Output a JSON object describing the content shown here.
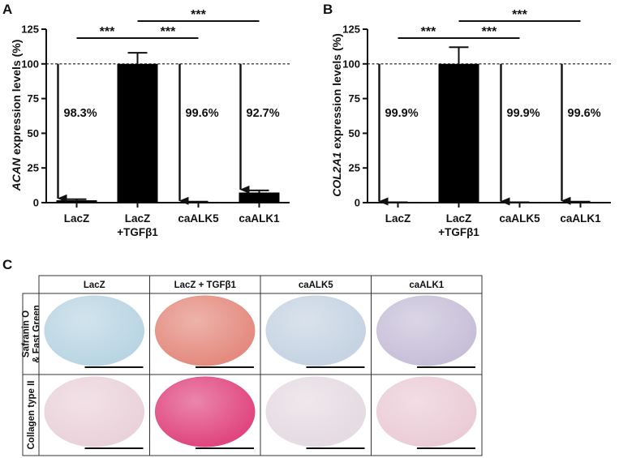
{
  "chart_data": [
    {
      "panel": "A",
      "type": "bar",
      "categories": [
        "LacZ",
        "LacZ +TGFβ1",
        "caALK5",
        "caALK1"
      ],
      "category_lines": [
        [
          "LacZ"
        ],
        [
          "LacZ",
          "+TGFβ1"
        ],
        [
          "caALK5"
        ],
        [
          "caALK1"
        ]
      ],
      "values": [
        1.7,
        100,
        0.4,
        7.3
      ],
      "errors": [
        0.8,
        8,
        0.3,
        1.5
      ],
      "ylabel_italic": "ACAN",
      "ylabel_rest": " expression levels (%)",
      "ylim": [
        0,
        125
      ],
      "yticks": [
        0,
        25,
        50,
        75,
        100,
        125
      ],
      "reference_line": 100,
      "reduction_labels": [
        "98.3%",
        "",
        "99.6%",
        "92.7%"
      ],
      "significance": [
        {
          "from": 0,
          "to": 1,
          "label": "***"
        },
        {
          "from": 1,
          "to": 2,
          "label": "***"
        },
        {
          "from": 1,
          "to": 3,
          "label": "***"
        }
      ],
      "bar_colors": [
        "#000000",
        "#000000",
        "#000000",
        "#000000"
      ]
    },
    {
      "panel": "B",
      "type": "bar",
      "categories": [
        "LacZ",
        "LacZ +TGFβ1",
        "caALK5",
        "caALK1"
      ],
      "category_lines": [
        [
          "LacZ"
        ],
        [
          "LacZ",
          "+TGFβ1"
        ],
        [
          "caALK5"
        ],
        [
          "caALK1"
        ]
      ],
      "values": [
        0.1,
        100,
        0.1,
        0.4
      ],
      "errors": [
        0.2,
        12,
        0.2,
        0.3
      ],
      "ylabel_italic": "COL2A1",
      "ylabel_rest": " expression levels (%)",
      "ylim": [
        0,
        125
      ],
      "yticks": [
        0,
        25,
        50,
        75,
        100,
        125
      ],
      "reference_line": 100,
      "reduction_labels": [
        "99.9%",
        "",
        "99.9%",
        "99.6%"
      ],
      "significance": [
        {
          "from": 0,
          "to": 1,
          "label": "***"
        },
        {
          "from": 1,
          "to": 2,
          "label": "***"
        },
        {
          "from": 1,
          "to": 3,
          "label": "***"
        }
      ],
      "bar_colors": [
        "#000000",
        "#000000",
        "#000000",
        "#000000"
      ]
    }
  ],
  "panel_c": {
    "letter": "C",
    "columns": [
      "LacZ",
      "LacZ + TGFβ1",
      "caALK5",
      "caALK1"
    ],
    "rows": [
      {
        "label_lines": [
          "Safranin O",
          "& Fast Green"
        ]
      },
      {
        "label_lines": [
          "Collagen type II"
        ]
      }
    ],
    "tissue_colors": [
      [
        "#b9d5e3",
        "#e48a7e",
        "#c5d3e2",
        "#c7bfd8"
      ],
      [
        "#ead2da",
        "#e0457e",
        "#e5dbe2",
        "#ebccd6"
      ]
    ]
  }
}
